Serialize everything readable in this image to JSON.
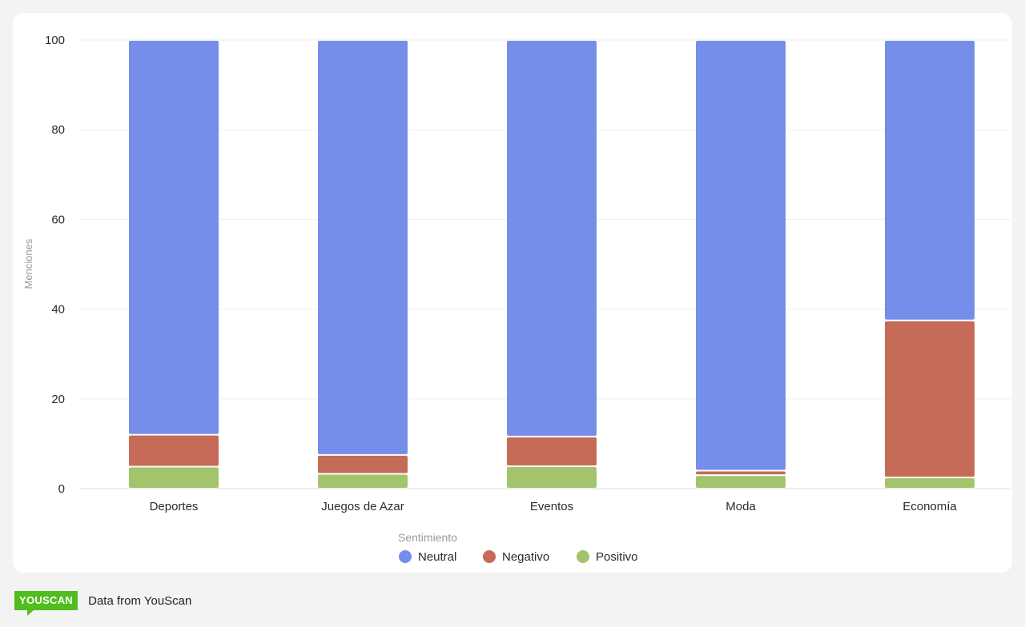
{
  "chart_data": {
    "type": "bar",
    "stacked": true,
    "categories": [
      "Deportes",
      "Juegos de Azar",
      "Eventos",
      "Moda",
      "Economía"
    ],
    "series": [
      {
        "name": "Positivo",
        "color": "#a3c46c",
        "values": [
          4.9,
          3.3,
          5.0,
          3.0,
          2.5
        ]
      },
      {
        "name": "Negativo",
        "color": "#c56b58",
        "values": [
          7.1,
          4.2,
          6.6,
          1.0,
          35.0
        ]
      },
      {
        "name": "Neutral",
        "color": "#758ee9",
        "values": [
          88.0,
          92.5,
          88.4,
          96.0,
          62.5
        ]
      }
    ],
    "ylabel": "Menciones",
    "ylim": [
      0,
      100
    ],
    "yticks": [
      0,
      20,
      40,
      60,
      80,
      100
    ],
    "grid": true,
    "legend": {
      "title": "Sentimiento",
      "placement": "bottom-center",
      "order": [
        "Neutral",
        "Negativo",
        "Positivo"
      ]
    }
  },
  "footer": {
    "logo_text": "YOUSCAN",
    "source_text": "Data from YouScan",
    "logo_color": "#4fbe1e"
  }
}
